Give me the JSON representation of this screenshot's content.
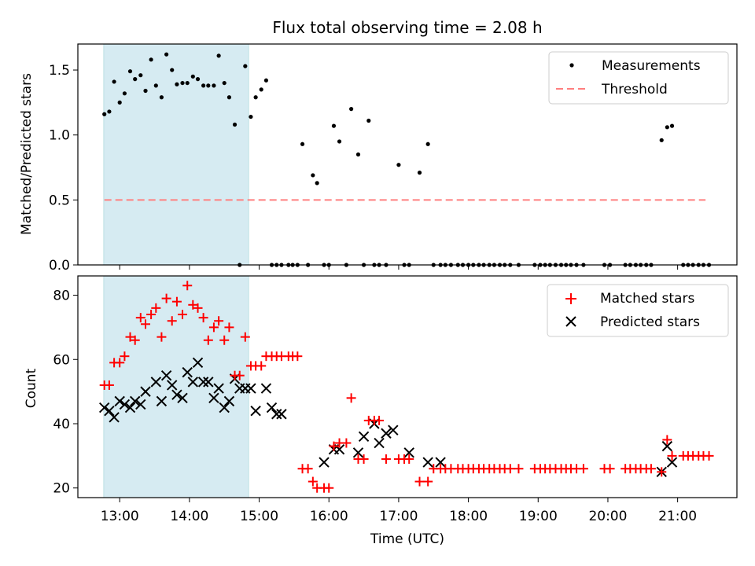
{
  "chart_data": [
    {
      "type": "scatter",
      "title": "Flux total observing time = 2.08 h",
      "xlabel": "",
      "ylabel": "Matched/Predicted stars",
      "xlim": [
        12.4,
        21.85
      ],
      "ylim": [
        0,
        1.7
      ],
      "yticks": [
        0.0,
        0.5,
        1.0,
        1.5
      ],
      "ytick_labels": [
        "0.0",
        "0.5",
        "1.0",
        "1.5"
      ],
      "highlight_span": [
        12.77,
        14.85
      ],
      "legend_position": "upper right",
      "series": [
        {
          "name": "Measurements",
          "kind": "points",
          "color": "#000000",
          "x": [
            12.78,
            12.85,
            12.92,
            13.0,
            13.07,
            13.15,
            13.22,
            13.3,
            13.37,
            13.45,
            13.52,
            13.6,
            13.67,
            13.75,
            13.82,
            13.9,
            13.97,
            14.05,
            14.12,
            14.2,
            14.27,
            14.35,
            14.42,
            14.5,
            14.57,
            14.65,
            14.72,
            14.8,
            14.88,
            14.95,
            15.03,
            15.1,
            15.18,
            15.25,
            15.32,
            15.42,
            15.48,
            15.55,
            15.62,
            15.7,
            15.77,
            15.83,
            15.93,
            16.0,
            16.07,
            16.15,
            16.25,
            16.32,
            16.42,
            16.5,
            16.57,
            16.65,
            16.72,
            16.82,
            17.0,
            17.08,
            17.15,
            17.3,
            17.42,
            17.5,
            17.6,
            17.67,
            17.75,
            17.85,
            17.92,
            18.0,
            18.07,
            18.15,
            18.22,
            18.3,
            18.37,
            18.45,
            18.52,
            18.6,
            18.72,
            18.95,
            19.03,
            19.1,
            19.17,
            19.25,
            19.33,
            19.4,
            19.47,
            19.55,
            19.65,
            19.95,
            20.03,
            20.25,
            20.32,
            20.4,
            20.47,
            20.55,
            20.62,
            20.77,
            20.85,
            20.92,
            21.08,
            21.15,
            21.22,
            21.3,
            21.37,
            21.45
          ],
          "y": [
            1.16,
            1.18,
            1.41,
            1.25,
            1.32,
            1.49,
            1.43,
            1.46,
            1.34,
            1.58,
            1.38,
            1.29,
            1.62,
            1.5,
            1.39,
            1.4,
            1.4,
            1.45,
            1.43,
            1.38,
            1.38,
            1.38,
            1.61,
            1.4,
            1.29,
            1.08,
            0.0,
            1.53,
            1.14,
            1.29,
            1.35,
            1.42,
            0.0,
            0.0,
            0.0,
            0.0,
            0.0,
            0.0,
            0.93,
            0.0,
            0.69,
            0.63,
            0.0,
            0.0,
            1.07,
            0.95,
            0.0,
            1.2,
            0.85,
            0.0,
            1.11,
            0.0,
            0.0,
            0.0,
            0.77,
            0.0,
            0.0,
            0.71,
            0.93,
            0.0,
            0.0,
            0.0,
            0.0,
            0.0,
            0.0,
            0.0,
            0.0,
            0.0,
            0.0,
            0.0,
            0.0,
            0.0,
            0.0,
            0.0,
            0.0,
            0.0,
            0.0,
            0.0,
            0.0,
            0.0,
            0.0,
            0.0,
            0.0,
            0.0,
            0.0,
            0.0,
            0.0,
            0.0,
            0.0,
            0.0,
            0.0,
            0.0,
            0.0,
            0.96,
            1.06,
            1.07,
            0.0,
            0.0,
            0.0,
            0.0,
            0.0,
            0.0
          ]
        },
        {
          "name": "Threshold",
          "kind": "dashed-line",
          "color": "#ff7f7f",
          "x": [
            12.78,
            21.4
          ],
          "y": [
            0.5,
            0.5
          ]
        }
      ]
    },
    {
      "type": "scatter",
      "title": "",
      "xlabel": "Time (UTC)",
      "ylabel": "Count",
      "xlim": [
        12.4,
        21.85
      ],
      "ylim": [
        17,
        86
      ],
      "yticks": [
        20,
        40,
        60,
        80
      ],
      "ytick_labels": [
        "20",
        "40",
        "60",
        "80"
      ],
      "xticks": [
        13,
        14,
        15,
        16,
        17,
        18,
        19,
        20,
        21
      ],
      "xtick_labels": [
        "13:00",
        "14:00",
        "15:00",
        "16:00",
        "17:00",
        "18:00",
        "19:00",
        "20:00",
        "21:00"
      ],
      "highlight_span": [
        12.77,
        14.85
      ],
      "legend_position": "upper right",
      "series": [
        {
          "name": "Matched stars",
          "kind": "plus",
          "color": "#ff0000",
          "x": [
            12.78,
            12.85,
            12.92,
            13.0,
            13.07,
            13.15,
            13.22,
            13.3,
            13.37,
            13.45,
            13.52,
            13.6,
            13.67,
            13.75,
            13.82,
            13.9,
            13.97,
            14.05,
            14.12,
            14.2,
            14.27,
            14.35,
            14.42,
            14.5,
            14.57,
            14.65,
            14.72,
            14.8,
            14.88,
            14.95,
            15.03,
            15.1,
            15.18,
            15.25,
            15.32,
            15.42,
            15.48,
            15.55,
            15.62,
            15.7,
            15.77,
            15.83,
            15.93,
            16.0,
            16.07,
            16.15,
            16.25,
            16.32,
            16.42,
            16.5,
            16.57,
            16.65,
            16.72,
            16.82,
            17.0,
            17.08,
            17.15,
            17.3,
            17.42,
            17.5,
            17.6,
            17.67,
            17.75,
            17.85,
            17.92,
            18.0,
            18.07,
            18.15,
            18.22,
            18.3,
            18.37,
            18.45,
            18.52,
            18.6,
            18.72,
            18.95,
            19.03,
            19.1,
            19.17,
            19.25,
            19.33,
            19.4,
            19.47,
            19.55,
            19.65,
            19.95,
            20.03,
            20.25,
            20.32,
            20.4,
            20.47,
            20.55,
            20.62,
            20.77,
            20.85,
            20.92,
            21.08,
            21.15,
            21.22,
            21.3,
            21.37,
            21.45
          ],
          "y": [
            52,
            52,
            59,
            59,
            61,
            67,
            66,
            73,
            71,
            74,
            76,
            67,
            79,
            72,
            78,
            74,
            83,
            77,
            76,
            73,
            66,
            70,
            72,
            66,
            70,
            55,
            55,
            67,
            58,
            58,
            58,
            61,
            61,
            61,
            61,
            61,
            61,
            61,
            26,
            26,
            22,
            20,
            20,
            20,
            33,
            34,
            34,
            48,
            29,
            29,
            41,
            41,
            41,
            29,
            29,
            29,
            29,
            22,
            22,
            26,
            26,
            26,
            26,
            26,
            26,
            26,
            26,
            26,
            26,
            26,
            26,
            26,
            26,
            26,
            26,
            26,
            26,
            26,
            26,
            26,
            26,
            26,
            26,
            26,
            26,
            26,
            26,
            26,
            26,
            26,
            26,
            26,
            26,
            25,
            35,
            30,
            30,
            30,
            30,
            30,
            30,
            30
          ]
        },
        {
          "name": "Predicted stars",
          "kind": "x",
          "color": "#000000",
          "x": [
            12.78,
            12.85,
            12.92,
            13.0,
            13.07,
            13.15,
            13.22,
            13.3,
            13.37,
            13.52,
            13.6,
            13.67,
            13.75,
            13.82,
            13.9,
            13.97,
            14.05,
            14.12,
            14.2,
            14.27,
            14.35,
            14.42,
            14.5,
            14.57,
            14.65,
            14.72,
            14.8,
            14.88,
            14.95,
            15.1,
            15.18,
            15.25,
            15.32,
            15.93,
            16.07,
            16.15,
            16.42,
            16.5,
            16.65,
            16.72,
            16.82,
            16.92,
            17.15,
            17.42,
            17.6,
            20.77,
            20.85,
            20.92
          ],
          "y": [
            45,
            44,
            42,
            47,
            46,
            45,
            47,
            46,
            50,
            53,
            47,
            55,
            52,
            49,
            48,
            56,
            53,
            59,
            53,
            53,
            48,
            51,
            45,
            47,
            54,
            51,
            51,
            51,
            44,
            51,
            45,
            43,
            43,
            28,
            32,
            32,
            31,
            36,
            40,
            34,
            37,
            38,
            31,
            28,
            28,
            25,
            33,
            28
          ]
        }
      ]
    }
  ]
}
